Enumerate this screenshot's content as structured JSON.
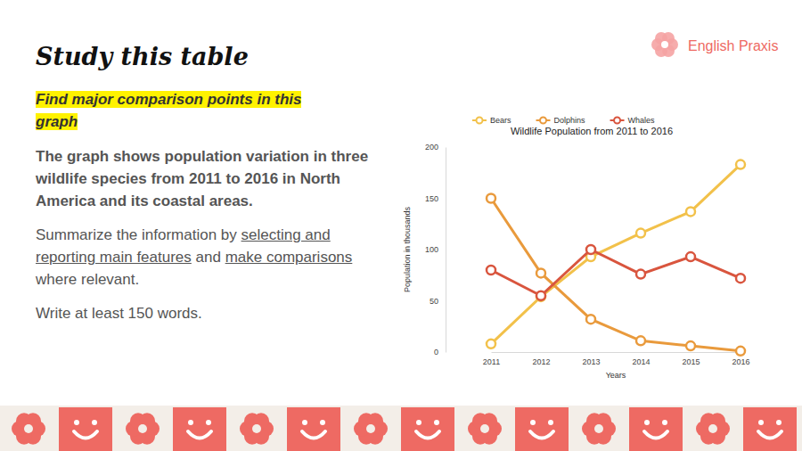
{
  "slide": {
    "heading": "Study this table",
    "highlight": "Find major comparison points in this graph",
    "description": "The graph shows population variation in three wildlife species from 2011 to 2016 in North America and its coastal areas.",
    "instruction": [
      "Summarize the information by ",
      "selecting and reporting main features",
      " and ",
      "make comparisons",
      " where relevant."
    ],
    "word_count": "Write at least 150 words.",
    "brand": "English Praxis"
  },
  "chart_data": {
    "type": "line",
    "title": "Wildlife Population from 2011 to 2016",
    "x_label": "Years",
    "y_label": "Population in thousands",
    "categories": [
      "2011",
      "2012",
      "2013",
      "2014",
      "2015",
      "2016"
    ],
    "series": [
      {
        "name": "Bears",
        "color": "#f2c14a",
        "values": [
          8,
          54,
          93,
          116,
          137,
          183
        ]
      },
      {
        "name": "Dolphins",
        "color": "#e99a3c",
        "values": [
          150,
          77,
          32,
          11,
          6,
          1
        ]
      },
      {
        "name": "Whales",
        "color": "#d9553e",
        "values": [
          80,
          55,
          100,
          76,
          93,
          72
        ]
      }
    ],
    "ylim": [
      0,
      200
    ],
    "yticks": [
      0,
      50,
      100,
      150,
      200
    ],
    "grid": false,
    "legend": "top",
    "marker": "circle",
    "line_style": "solid"
  }
}
